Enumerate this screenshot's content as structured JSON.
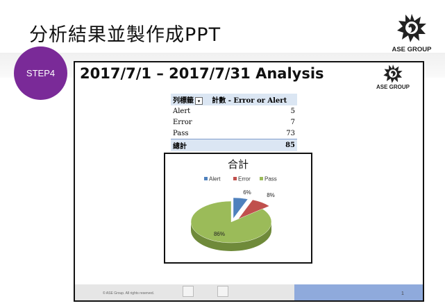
{
  "slide": {
    "title": "分析結果並製作成PPT",
    "step_label": "STEP4",
    "logo_text": "ASE GROUP"
  },
  "inner_slide": {
    "title": "2017/7/1 – 2017/7/31 Analysis",
    "logo_text": "ASE GROUP",
    "footer_copyright": "© ASE Group. All rights reserved.",
    "footer_page": "1"
  },
  "pivot_table": {
    "header_left": "列標籤",
    "header_right": "計數 - Error or Alert",
    "rows": [
      {
        "label": "Alert",
        "value": "5"
      },
      {
        "label": "Error",
        "value": "7"
      },
      {
        "label": "Pass",
        "value": "73"
      }
    ],
    "total_label": "總計",
    "total_value": "85"
  },
  "chart_data": {
    "type": "pie",
    "title": "合計",
    "legend_position": "top",
    "categories": [
      "Alert",
      "Error",
      "Pass"
    ],
    "values": [
      5,
      7,
      73
    ],
    "data_labels": [
      "6%",
      "8%",
      "86%"
    ],
    "colors": [
      "#4f81bd",
      "#c0504d",
      "#9bbb59"
    ]
  }
}
